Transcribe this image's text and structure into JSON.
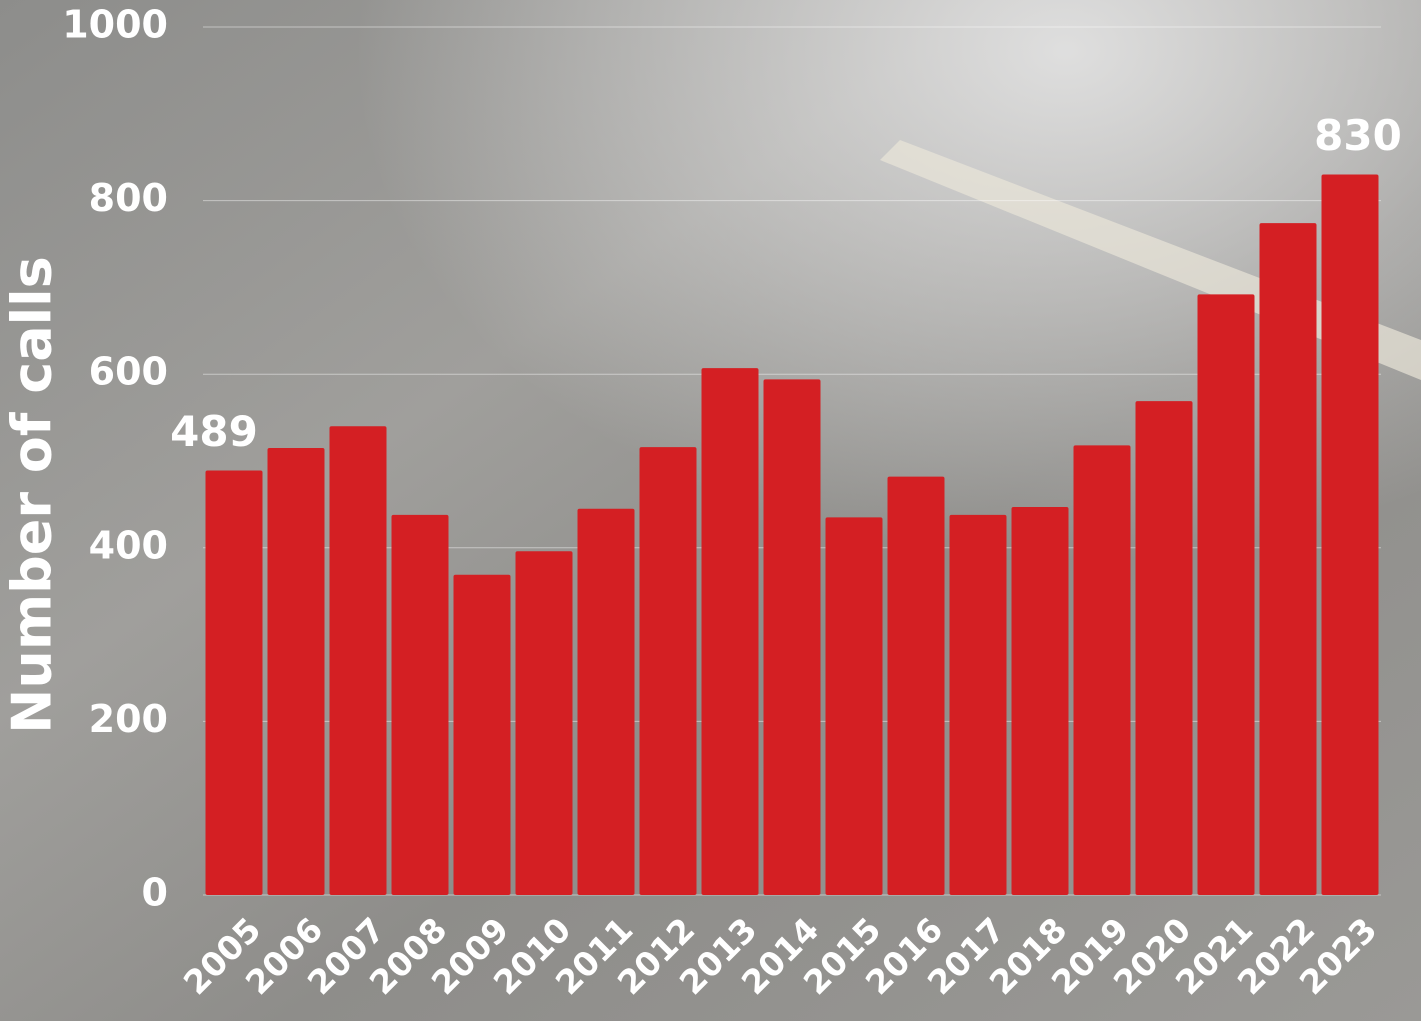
{
  "chart_data": {
    "type": "bar",
    "y_label": "Number of calls",
    "categories": [
      "2005",
      "2006",
      "2007",
      "2008",
      "2009",
      "2010",
      "2011",
      "2012",
      "2013",
      "2014",
      "2015",
      "2016",
      "2017",
      "2018",
      "2019",
      "2020",
      "2021",
      "2022",
      "2023"
    ],
    "values": [
      489,
      515,
      540,
      438,
      369,
      396,
      445,
      516,
      607,
      594,
      435,
      482,
      438,
      447,
      518,
      569,
      692,
      774,
      830
    ],
    "color": "#d41f23",
    "ylim": [
      0,
      1000
    ],
    "yticks": [
      0,
      200,
      400,
      600,
      800,
      1000
    ],
    "grid": true
  }
}
